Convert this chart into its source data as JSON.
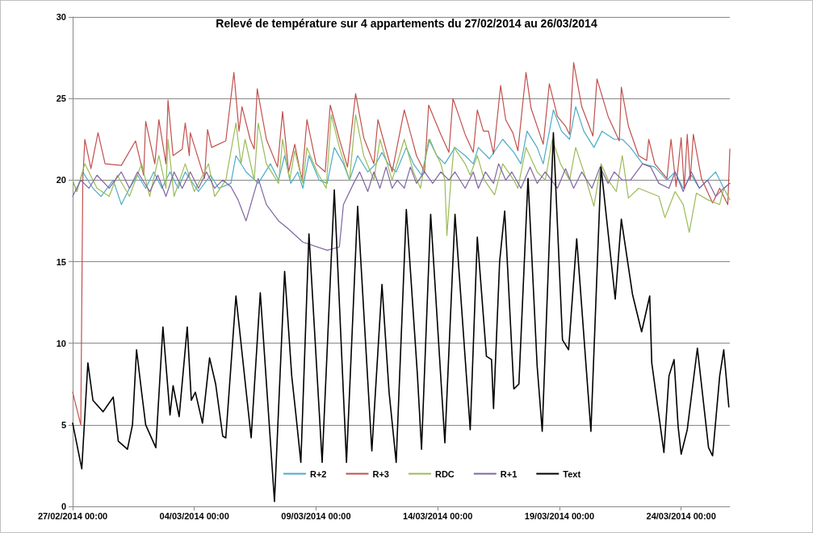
{
  "chart_data": {
    "type": "line",
    "title": "Relevé de température sur 4 appartements du 27/02/2014 au 26/03/2014",
    "xlim": [
      "2014-02-27T00:00",
      "2014-03-26T00:00"
    ],
    "xticks": [
      {
        "value": "2014-02-27T00:00",
        "label": "27/02/2014 00:00"
      },
      {
        "value": "2014-03-04T00:00",
        "label": "04/03/2014 00:00"
      },
      {
        "value": "2014-03-09T00:00",
        "label": "09/03/2014 00:00"
      },
      {
        "value": "2014-03-14T00:00",
        "label": "14/03/2014 00:00"
      },
      {
        "value": "2014-03-19T00:00",
        "label": "19/03/2014 00:00"
      },
      {
        "value": "2014-03-24T00:00",
        "label": "24/03/2014 00:00"
      }
    ],
    "ylim": [
      0,
      30
    ],
    "yticks": [
      0,
      5,
      10,
      15,
      20,
      25,
      30
    ],
    "grid": "y",
    "legend": "bottom",
    "marker": "none",
    "line_style": "solid",
    "series": [
      {
        "name": "R+2",
        "color": "#4bacc6",
        "x": [
          "2014-02-27T00:00",
          "2014-02-27T04:00",
          "2014-02-27T10:00",
          "2014-02-27T20:00",
          "2014-02-28T04:00",
          "2014-02-28T16:00",
          "2014-03-01T00:00",
          "2014-03-01T08:00",
          "2014-03-01T16:00",
          "2014-03-02T00:00",
          "2014-03-02T08:00",
          "2014-03-02T16:00",
          "2014-03-03T00:00",
          "2014-03-03T08:00",
          "2014-03-03T15:00",
          "2014-03-04T04:00",
          "2014-03-04T16:00",
          "2014-03-05T00:00",
          "2014-03-05T12:00",
          "2014-03-05T17:00",
          "2014-03-06T03:00",
          "2014-03-06T15:00",
          "2014-03-07T03:00",
          "2014-03-07T11:00",
          "2014-03-07T17:00",
          "2014-03-07T23:00",
          "2014-03-08T06:00",
          "2014-03-08T11:00",
          "2014-03-08T17:00",
          "2014-03-09T03:00",
          "2014-03-09T11:00",
          "2014-03-09T18:00",
          "2014-03-10T03:00",
          "2014-03-10T09:00",
          "2014-03-10T17:00",
          "2014-03-11T03:00",
          "2014-03-11T11:00",
          "2014-03-11T17:00",
          "2014-03-11T23:00",
          "2014-03-12T07:00",
          "2014-03-12T17:00",
          "2014-03-13T00:00",
          "2014-03-13T08:00",
          "2014-03-13T16:00",
          "2014-03-13T23:00",
          "2014-03-14T07:00",
          "2014-03-14T17:00",
          "2014-03-15T03:00",
          "2014-03-15T11:00",
          "2014-03-15T16:00",
          "2014-03-16T03:00",
          "2014-03-16T16:00",
          "2014-03-17T03:00",
          "2014-03-17T10:00",
          "2014-03-17T16:00",
          "2014-03-18T02:00",
          "2014-03-18T08:00",
          "2014-03-18T18:00",
          "2014-03-19T02:00",
          "2014-03-19T10:00",
          "2014-03-19T16:00",
          "2014-03-20T00:00",
          "2014-03-20T10:00",
          "2014-03-20T18:00",
          "2014-03-21T06:00",
          "2014-03-21T14:00",
          "2014-03-21T22:00",
          "2014-03-22T10:00",
          "2014-03-22T22:00",
          "2014-03-23T10:00",
          "2014-03-23T18:00",
          "2014-03-24T02:00",
          "2014-03-24T10:00",
          "2014-03-24T18:00",
          "2014-03-25T02:00",
          "2014-03-25T10:00",
          "2014-03-25T18:00",
          "2014-03-26T00:00"
        ],
        "values": [
          20,
          19.3,
          20.5,
          19.5,
          19,
          20,
          18.5,
          19.5,
          20.3,
          19.5,
          20.5,
          19.5,
          20.5,
          19.5,
          20.5,
          19.3,
          20.3,
          19.5,
          19.8,
          21.5,
          20.5,
          19.8,
          21,
          20,
          21.5,
          19.8,
          20.5,
          19.5,
          21.5,
          20,
          19.8,
          22,
          21,
          20,
          21.5,
          20.5,
          21,
          21.7,
          21,
          20.5,
          22,
          21,
          20.3,
          22.5,
          21.5,
          21,
          22,
          21.5,
          21,
          22,
          21.3,
          22.5,
          21.7,
          21,
          23,
          22,
          21,
          24.3,
          23,
          22.5,
          24.5,
          23,
          22,
          23,
          22.5,
          22.5,
          22,
          21,
          20.8,
          20,
          20.5,
          19.5,
          20.3,
          19.5,
          20,
          20.5,
          19.5,
          19.8
        ]
      },
      {
        "name": "R+3",
        "color": "#c0504d",
        "x": [
          "2014-02-27T00:00",
          "2014-02-27T08:00",
          "2014-02-27T10:00",
          "2014-02-27T12:00",
          "2014-02-27T18:00",
          "2014-02-28T01:00",
          "2014-02-28T08:00",
          "2014-03-01T00:00",
          "2014-03-01T14:00",
          "2014-03-01T22:00",
          "2014-03-02T00:00",
          "2014-03-02T09:00",
          "2014-03-02T13:00",
          "2014-03-02T20:00",
          "2014-03-02T22:00",
          "2014-03-03T03:00",
          "2014-03-03T12:00",
          "2014-03-03T15:00",
          "2014-03-03T19:00",
          "2014-03-03T20:00",
          "2014-03-04T10:00",
          "2014-03-04T13:00",
          "2014-03-04T17:00",
          "2014-03-05T07:00",
          "2014-03-05T15:00",
          "2014-03-05T20:00",
          "2014-03-05T23:00",
          "2014-03-06T07:00",
          "2014-03-06T11:00",
          "2014-03-06T14:00",
          "2014-03-06T23:00",
          "2014-03-07T10:00",
          "2014-03-07T15:00",
          "2014-03-07T21:00",
          "2014-03-08T03:00",
          "2014-03-08T10:00",
          "2014-03-08T15:00",
          "2014-03-09T00:00",
          "2014-03-09T09:00",
          "2014-03-09T14:00",
          "2014-03-09T23:00",
          "2014-03-10T07:00",
          "2014-03-10T15:00",
          "2014-03-10T23:00",
          "2014-03-11T09:00",
          "2014-03-11T13:00",
          "2014-03-12T03:00",
          "2014-03-12T15:00",
          "2014-03-13T03:00",
          "2014-03-13T11:00",
          "2014-03-13T15:00",
          "2014-03-14T03:00",
          "2014-03-14T11:00",
          "2014-03-14T15:00",
          "2014-03-15T03:00",
          "2014-03-15T11:00",
          "2014-03-15T15:00",
          "2014-03-15T21:00",
          "2014-03-16T02:00",
          "2014-03-16T07:00",
          "2014-03-16T14:00",
          "2014-03-16T19:00",
          "2014-03-17T02:00",
          "2014-03-17T07:00",
          "2014-03-17T15:00",
          "2014-03-17T20:00",
          "2014-03-18T08:00",
          "2014-03-18T14:00",
          "2014-03-18T22:00",
          "2014-03-19T06:00",
          "2014-03-19T10:00",
          "2014-03-19T14:00",
          "2014-03-19T22:00",
          "2014-03-20T09:00",
          "2014-03-20T13:00",
          "2014-03-21T00:00",
          "2014-03-21T11:00",
          "2014-03-21T13:00",
          "2014-03-21T20:00",
          "2014-03-22T06:00",
          "2014-03-22T14:00",
          "2014-03-22T16:00",
          "2014-03-22T22:00",
          "2014-03-23T10:00",
          "2014-03-23T14:00",
          "2014-03-23T19:00",
          "2014-03-24T00:00",
          "2014-03-24T03:00",
          "2014-03-24T06:00",
          "2014-03-24T09:00",
          "2014-03-24T12:00",
          "2014-03-24T20:00",
          "2014-03-25T07:00",
          "2014-03-25T14:00",
          "2014-03-25T22:00",
          "2014-03-26T00:00"
        ],
        "values": [
          7,
          5,
          20,
          22.5,
          20.7,
          22.9,
          21,
          20.9,
          22.4,
          20.3,
          23.6,
          21,
          23.7,
          21,
          24.9,
          21.5,
          21.9,
          23.5,
          21.5,
          22.9,
          20.1,
          23.1,
          22,
          22.4,
          26.6,
          23,
          24.5,
          22.5,
          21.9,
          25.6,
          22.5,
          20.8,
          24.2,
          20.5,
          22.2,
          20,
          23.7,
          21,
          20.5,
          24.6,
          22.5,
          20.8,
          25.3,
          22.6,
          21,
          23.7,
          20.5,
          24.3,
          21.5,
          20.5,
          24.6,
          22.8,
          21.7,
          25,
          22.8,
          21.7,
          24.3,
          23,
          23,
          21.6,
          25.8,
          23.7,
          22.9,
          21.8,
          26.6,
          24.4,
          22.2,
          25.9,
          23.9,
          23.3,
          22.8,
          27.2,
          24.5,
          22.7,
          26.2,
          23.9,
          22.4,
          25.7,
          23.3,
          21.5,
          21.2,
          22.5,
          21,
          20.1,
          22.5,
          19.6,
          22.6,
          19.5,
          22.8,
          20,
          22.8,
          20.1,
          18.6,
          19.5,
          18.5,
          21.9
        ]
      },
      {
        "name": "RDC",
        "color": "#9bbb59",
        "x": [
          "2014-02-27T00:00",
          "2014-02-27T04:00",
          "2014-02-27T12:00",
          "2014-02-28T00:00",
          "2014-02-28T12:00",
          "2014-02-28T20:00",
          "2014-03-01T08:00",
          "2014-03-01T20:00",
          "2014-03-02T04:00",
          "2014-03-02T13:00",
          "2014-03-02T20:00",
          "2014-03-02T22:00",
          "2014-03-03T04:00",
          "2014-03-03T15:00",
          "2014-03-04T00:00",
          "2014-03-04T14:00",
          "2014-03-04T20:00",
          "2014-03-05T07:00",
          "2014-03-05T17:00",
          "2014-03-05T22:00",
          "2014-03-06T02:00",
          "2014-03-06T11:00",
          "2014-03-06T15:00",
          "2014-03-06T23:00",
          "2014-03-07T11:00",
          "2014-03-07T15:00",
          "2014-03-07T22:00",
          "2014-03-08T03:00",
          "2014-03-08T11:00",
          "2014-03-08T15:00",
          "2014-03-09T01:00",
          "2014-03-09T10:00",
          "2014-03-09T15:00",
          "2014-03-09T23:00",
          "2014-03-10T09:00",
          "2014-03-10T15:00",
          "2014-03-10T23:00",
          "2014-03-11T09:00",
          "2014-03-11T15:00",
          "2014-03-12T03:00",
          "2014-03-12T15:00",
          "2014-03-13T00:00",
          "2014-03-13T07:00",
          "2014-03-13T15:00",
          "2014-03-14T03:00",
          "2014-03-14T07:00",
          "2014-03-14T09:00",
          "2014-03-14T13:00",
          "2014-03-14T16:00",
          "2014-03-15T03:00",
          "2014-03-15T08:00",
          "2014-03-15T15:00",
          "2014-03-15T22:00",
          "2014-03-16T08:00",
          "2014-03-16T16:00",
          "2014-03-17T03:00",
          "2014-03-17T07:00",
          "2014-03-17T15:00",
          "2014-03-18T02:00",
          "2014-03-18T10:00",
          "2014-03-18T17:00",
          "2014-03-19T01:00",
          "2014-03-19T10:00",
          "2014-03-19T16:00",
          "2014-03-20T00:00",
          "2014-03-20T10:00",
          "2014-03-20T17:00",
          "2014-03-21T00:00",
          "2014-03-21T08:00",
          "2014-03-21T14:00",
          "2014-03-21T20:00",
          "2014-03-22T06:00",
          "2014-03-22T18:00",
          "2014-03-23T02:00",
          "2014-03-23T08:00",
          "2014-03-23T18:00",
          "2014-03-24T02:00",
          "2014-03-24T08:00",
          "2014-03-24T15:00",
          "2014-03-25T02:00",
          "2014-03-25T14:00",
          "2014-03-25T18:00",
          "2014-03-26T00:00"
        ],
        "values": [
          20,
          19.3,
          21,
          19.5,
          19,
          20.3,
          19,
          21,
          19,
          21.5,
          19.5,
          22.5,
          19,
          21,
          19.3,
          21,
          19,
          20,
          23.5,
          21,
          22.5,
          20,
          23.5,
          21,
          19.8,
          22.5,
          20,
          21.8,
          19.8,
          22,
          20.5,
          19.5,
          24,
          22,
          20,
          24,
          21.5,
          20,
          22.5,
          20,
          22.5,
          20.5,
          19.5,
          22.5,
          21,
          20,
          16.6,
          20,
          22,
          21,
          20.3,
          21.5,
          20,
          19.1,
          21,
          20,
          19.5,
          22,
          20.5,
          20,
          22.5,
          21,
          20,
          22,
          20.5,
          18.4,
          21,
          20,
          19.3,
          21.5,
          18.9,
          19.5,
          19.2,
          19,
          17.7,
          19.3,
          18.5,
          16.8,
          19.2,
          18.8,
          18.5,
          19.5,
          18.8
        ]
      },
      {
        "name": "R+1",
        "color": "#8064a2",
        "x": [
          "2014-02-27T00:00",
          "2014-02-27T08:00",
          "2014-02-27T16:00",
          "2014-02-28T00:00",
          "2014-02-28T12:00",
          "2014-03-01T00:00",
          "2014-03-01T08:00",
          "2014-03-01T16:00",
          "2014-03-02T04:00",
          "2014-03-02T12:00",
          "2014-03-02T20:00",
          "2014-03-03T04:00",
          "2014-03-03T12:00",
          "2014-03-03T20:00",
          "2014-03-04T04:00",
          "2014-03-04T12:00",
          "2014-03-04T20:00",
          "2014-03-05T04:00",
          "2014-03-05T12:00",
          "2014-03-05T19:00",
          "2014-03-06T03:00",
          "2014-03-06T15:00",
          "2014-03-06T23:00",
          "2014-03-07T11:00",
          "2014-03-07T19:00",
          "2014-03-08T11:00",
          "2014-03-09T11:00",
          "2014-03-09T23:00",
          "2014-03-10T03:00",
          "2014-03-10T13:00",
          "2014-03-10T19:00",
          "2014-03-11T03:00",
          "2014-03-11T09:00",
          "2014-03-11T15:00",
          "2014-03-11T21:00",
          "2014-03-12T03:00",
          "2014-03-12T08:00",
          "2014-03-12T15:00",
          "2014-03-12T21:00",
          "2014-03-13T03:00",
          "2014-03-13T11:00",
          "2014-03-13T19:00",
          "2014-03-14T03:00",
          "2014-03-14T11:00",
          "2014-03-14T17:00",
          "2014-03-15T03:00",
          "2014-03-15T11:00",
          "2014-03-15T16:00",
          "2014-03-15T23:00",
          "2014-03-16T07:00",
          "2014-03-16T12:00",
          "2014-03-16T19:00",
          "2014-03-17T01:00",
          "2014-03-17T10:00",
          "2014-03-17T19:00",
          "2014-03-18T02:00",
          "2014-03-18T10:00",
          "2014-03-18T22:00",
          "2014-03-19T06:00",
          "2014-03-19T14:00",
          "2014-03-19T22:00",
          "2014-03-20T08:00",
          "2014-03-20T16:00",
          "2014-03-21T00:00",
          "2014-03-21T06:00",
          "2014-03-21T14:00",
          "2014-03-21T22:00",
          "2014-03-22T10:00",
          "2014-03-22T18:00",
          "2014-03-23T02:00",
          "2014-03-23T12:00",
          "2014-03-23T18:00",
          "2014-03-24T02:00",
          "2014-03-24T10:00",
          "2014-03-24T18:00",
          "2014-03-25T02:00",
          "2014-03-25T10:00",
          "2014-03-25T18:00",
          "2014-03-26T00:00"
        ],
        "values": [
          19,
          20,
          19.5,
          20.3,
          19.5,
          20.5,
          19.5,
          20.5,
          19.3,
          20.3,
          19,
          20.5,
          19.5,
          20.5,
          19.5,
          20.5,
          19.5,
          20,
          19.6,
          18.8,
          17.5,
          20.1,
          18.5,
          17.5,
          17.1,
          16.2,
          15.7,
          15.9,
          18.5,
          19.8,
          20.5,
          19.3,
          20.5,
          19.5,
          20.8,
          19.5,
          20,
          19.5,
          20.8,
          19.8,
          20.5,
          19.8,
          20.5,
          20,
          20.5,
          19.5,
          20.5,
          19.5,
          20.5,
          19.8,
          21,
          20,
          20.5,
          19.5,
          20.8,
          19.8,
          20.5,
          19.5,
          20.7,
          19.5,
          20.5,
          19.5,
          20.8,
          19.8,
          20.5,
          20,
          20,
          21,
          20.8,
          19.8,
          19.5,
          20.5,
          19.3,
          20.5,
          19.5,
          20,
          19,
          19.5,
          19.8
        ]
      },
      {
        "name": "Text",
        "color": "#000000",
        "x": [
          "2014-02-27T00:00",
          "2014-02-27T09:00",
          "2014-02-27T15:00",
          "2014-02-27T20:00",
          "2014-02-28T06:00",
          "2014-02-28T16:00",
          "2014-02-28T21:00",
          "2014-03-01T06:00",
          "2014-03-01T11:00",
          "2014-03-01T15:00",
          "2014-03-01T20:00",
          "2014-03-02T00:00",
          "2014-03-02T10:00",
          "2014-03-02T17:00",
          "2014-03-03T00:00",
          "2014-03-03T03:00",
          "2014-03-03T09:00",
          "2014-03-03T17:00",
          "2014-03-03T21:00",
          "2014-03-04T01:00",
          "2014-03-04T08:00",
          "2014-03-04T15:00",
          "2014-03-04T21:00",
          "2014-03-05T04:00",
          "2014-03-05T07:00",
          "2014-03-05T17:00",
          "2014-03-06T08:00",
          "2014-03-06T17:00",
          "2014-03-07T07:00",
          "2014-03-07T17:00",
          "2014-03-08T00:00",
          "2014-03-08T04:00",
          "2014-03-08T09:00",
          "2014-03-08T17:00",
          "2014-03-09T06:00",
          "2014-03-09T18:00",
          "2014-03-10T06:00",
          "2014-03-10T17:00",
          "2014-03-11T07:00",
          "2014-03-11T17:00",
          "2014-03-12T00:00",
          "2014-03-12T07:00",
          "2014-03-12T17:00",
          "2014-03-13T04:00",
          "2014-03-13T08:00",
          "2014-03-13T17:00",
          "2014-03-14T07:00",
          "2014-03-14T17:00",
          "2014-03-15T08:00",
          "2014-03-15T15:00",
          "2014-03-16T00:00",
          "2014-03-16T05:00",
          "2014-03-16T07:00",
          "2014-03-16T13:00",
          "2014-03-16T18:00",
          "2014-03-17T03:00",
          "2014-03-17T08:00",
          "2014-03-17T17:00",
          "2014-03-18T02:00",
          "2014-03-18T07:00",
          "2014-03-18T18:00",
          "2014-03-19T03:00",
          "2014-03-19T09:00",
          "2014-03-19T17:00",
          "2014-03-20T07:00",
          "2014-03-20T17:00",
          "2014-03-21T07:00",
          "2014-03-21T13:00",
          "2014-03-22T00:00",
          "2014-03-22T09:00",
          "2014-03-22T17:00",
          "2014-03-22T19:00",
          "2014-03-23T07:00",
          "2014-03-23T12:00",
          "2014-03-23T17:00",
          "2014-03-23T21:00",
          "2014-03-24T00:00",
          "2014-03-24T06:00",
          "2014-03-24T16:00",
          "2014-03-25T03:00",
          "2014-03-25T07:00",
          "2014-03-25T14:00",
          "2014-03-25T18:00",
          "2014-03-25T23:00"
        ],
        "values": [
          5.1,
          2.3,
          8.8,
          6.5,
          5.8,
          6.7,
          4,
          3.5,
          5,
          9.6,
          7,
          5,
          3.6,
          11,
          5.6,
          7.4,
          5.5,
          11,
          6.5,
          7,
          5.1,
          9.1,
          7.5,
          4.3,
          4.2,
          12.9,
          4.2,
          13.1,
          0.3,
          14.4,
          8,
          5.7,
          2.7,
          16.7,
          2.7,
          19.4,
          2.7,
          18.4,
          3.4,
          13.6,
          7,
          2.7,
          18.2,
          8,
          3.5,
          17.9,
          3.9,
          17.9,
          4.7,
          16.5,
          9.2,
          9,
          6,
          15,
          18.1,
          7.2,
          7.5,
          20.1,
          8.6,
          4.6,
          22.9,
          10.2,
          9.6,
          16.4,
          4.6,
          20.8,
          12.7,
          17.6,
          13,
          10.7,
          12.9,
          8.8,
          3.3,
          8,
          9,
          4.9,
          3.2,
          4.7,
          9.7,
          3.6,
          3.1,
          8,
          9.6,
          6.1
        ]
      }
    ]
  }
}
